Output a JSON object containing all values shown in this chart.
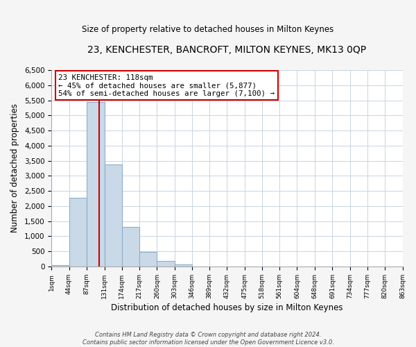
{
  "title": "23, KENCHESTER, BANCROFT, MILTON KEYNES, MK13 0QP",
  "subtitle": "Size of property relative to detached houses in Milton Keynes",
  "xlabel": "Distribution of detached houses by size in Milton Keynes",
  "ylabel": "Number of detached properties",
  "bin_edges": [
    1,
    44,
    87,
    131,
    174,
    217,
    260,
    303,
    346,
    389,
    432,
    475,
    518,
    561,
    604,
    648,
    691,
    734,
    777,
    820,
    863
  ],
  "bin_counts": [
    50,
    2280,
    5440,
    3370,
    1300,
    475,
    185,
    75,
    0,
    0,
    0,
    0,
    0,
    0,
    0,
    0,
    0,
    0,
    0,
    0
  ],
  "bar_color": "#c9d9e8",
  "bar_edgecolor": "#8eaec9",
  "vline_x": 118,
  "vline_color": "#cc0000",
  "annotation_title": "23 KENCHESTER: 118sqm",
  "annotation_line1": "← 45% of detached houses are smaller (5,877)",
  "annotation_line2": "54% of semi-detached houses are larger (7,100) →",
  "annotation_box_facecolor": "#ffffff",
  "annotation_box_edgecolor": "#cc0000",
  "ylim": [
    0,
    6500
  ],
  "yticks": [
    0,
    500,
    1000,
    1500,
    2000,
    2500,
    3000,
    3500,
    4000,
    4500,
    5000,
    5500,
    6000,
    6500
  ],
  "footer1": "Contains HM Land Registry data © Crown copyright and database right 2024.",
  "footer2": "Contains public sector information licensed under the Open Government Licence v3.0.",
  "fig_bg_color": "#f5f5f5",
  "plot_bg_color": "#ffffff",
  "grid_color": "#c8d4e0"
}
